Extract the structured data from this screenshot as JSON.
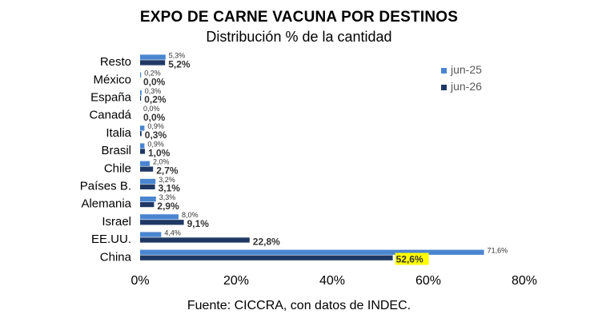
{
  "chart_data": {
    "type": "bar",
    "orientation": "horizontal",
    "title": "EXPO DE CARNE VACUNA POR DESTINOS",
    "subtitle": "Distribución % de la cantidad",
    "source": "Fuente: CICCRA, con datos de INDEC.",
    "categories": [
      "Resto",
      "México",
      "España",
      "Canadá",
      "Italia",
      "Brasil",
      "Chile",
      "Países B.",
      "Alemania",
      "Israel",
      "EE.UU.",
      "China"
    ],
    "series": [
      {
        "name": "jun-25",
        "color": "#4a86d0",
        "values": [
          5.3,
          0.2,
          0.3,
          0.0,
          0.9,
          0.9,
          2.0,
          3.2,
          3.3,
          8.0,
          4.4,
          71.6
        ],
        "labels": [
          "5,3%",
          "0,2%",
          "0,3%",
          "0,0%",
          "0,9%",
          "0,9%",
          "2,0%",
          "3,2%",
          "3,3%",
          "8,0%",
          "4,4%",
          "71,6%"
        ]
      },
      {
        "name": "jun-26",
        "color": "#1f3864",
        "values": [
          5.2,
          0.0,
          0.2,
          0.0,
          0.3,
          1.0,
          2.7,
          3.1,
          2.9,
          9.1,
          22.8,
          52.6
        ],
        "labels": [
          "5,2%",
          "0,0%",
          "0,2%",
          "0,0%",
          "0,3%",
          "1,0%",
          "2,7%",
          "3,1%",
          "2,9%",
          "9,1%",
          "22,8%",
          "52,6%"
        ]
      }
    ],
    "highlight": {
      "series": 1,
      "index": 11,
      "color": "#ffff00"
    },
    "xlim": [
      0,
      80
    ],
    "xticks": [
      0,
      20,
      40,
      60,
      80
    ],
    "xtick_labels": [
      "0%",
      "20%",
      "40%",
      "60%",
      "80%"
    ],
    "grid": false,
    "legend_position": "top-right"
  }
}
